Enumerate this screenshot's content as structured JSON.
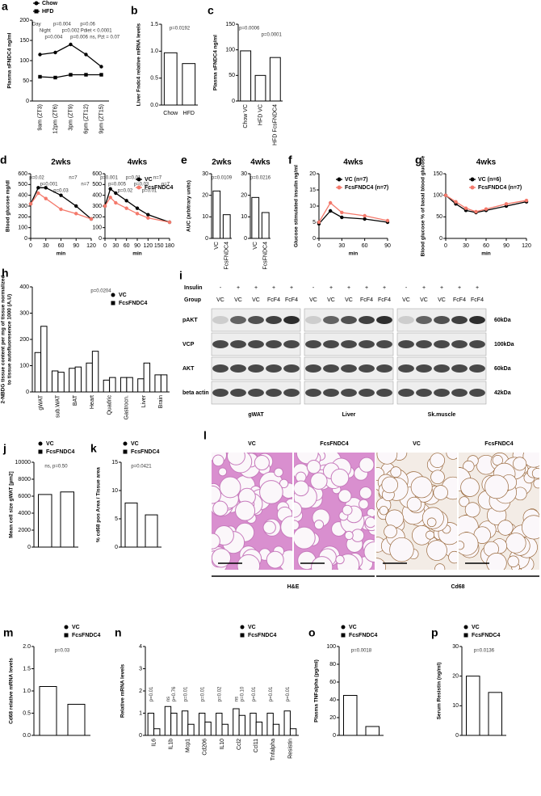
{
  "chart_data": [
    {
      "type": "line",
      "label": "a",
      "ylabel": "Plasma sFNDC4 ng/ml",
      "categories": [
        "9am (ZT3)",
        "12pm (ZT6)",
        "3pm (ZT9)",
        "6pm (ZT12)",
        "9pm (ZT15)"
      ],
      "series": [
        {
          "name": "Chow",
          "color": "#000000",
          "marker": "circle",
          "values": [
            115,
            120,
            140,
            115,
            85
          ]
        },
        {
          "name": "HFD",
          "color": "#000000",
          "marker": "square",
          "values": [
            60,
            58,
            65,
            65,
            65
          ]
        }
      ],
      "ylim": [
        0,
        200
      ],
      "yticks": [
        0,
        50,
        100,
        150,
        200
      ],
      "annotations": [
        "Day",
        "Night",
        "p=0.004",
        "p=0.004",
        "p=0.002",
        "p=0.006",
        "p=0.06",
        "Pdiet < 0.0001",
        "ns, Pzt = 0.07"
      ]
    },
    {
      "type": "bar",
      "label": "b",
      "ylabel": "Liver Fndc4 relative mRNA levels",
      "categories": [
        "Chow",
        "HFD"
      ],
      "series": [
        {
          "color": "#000000",
          "values": [
            0.97,
            0.77
          ]
        }
      ],
      "ylim": [
        0,
        1.5
      ],
      "yticks": [
        {
          "value": 0,
          "label": "0.0"
        },
        {
          "value": 0.5,
          "label": "0.5"
        },
        {
          "value": 1,
          "label": "1.0"
        },
        {
          "value": 1.5,
          "label": "1.5"
        }
      ],
      "annotations": [
        "p=0.0192"
      ]
    },
    {
      "type": "bar",
      "label": "c",
      "ylabel": "Plasma sFNDC4 ng/ml",
      "categories": [
        "Chow VC",
        "HFD VC",
        "HFD FcsFNDC4"
      ],
      "series": [
        {
          "color": "#000000",
          "values": [
            98,
            50,
            85
          ]
        }
      ],
      "ylim": [
        0,
        150
      ],
      "yticks": [
        0,
        50,
        100,
        150
      ],
      "annotations": [
        "p=0.0006",
        "p=0.0001"
      ]
    },
    {
      "type": "line",
      "label": "d",
      "title": "2wks",
      "ylabel": "Blood glucose mg/dl",
      "xlabel": "min",
      "x": [
        0,
        15,
        30,
        60,
        90,
        120
      ],
      "series": [
        {
          "color": "#000000",
          "marker": "circle",
          "values": [
            320,
            470,
            470,
            400,
            300,
            180
          ]
        },
        {
          "color": "#f4796b",
          "marker": "circle",
          "values": [
            320,
            420,
            370,
            270,
            230,
            180
          ]
        }
      ],
      "xlim": [
        0,
        120
      ],
      "xticks": [
        0,
        30,
        60,
        90,
        120
      ],
      "ylim": [
        0,
        600
      ],
      "yticks": [
        0,
        100,
        200,
        300,
        400,
        500,
        600
      ],
      "annotations": [
        "p=0.02",
        "p=0.001",
        "p=0.03",
        "n=7",
        "n=7"
      ]
    },
    {
      "type": "line",
      "title": "4wks",
      "xlabel": "min",
      "x": [
        0,
        15,
        30,
        60,
        90,
        120,
        180
      ],
      "series": [
        {
          "name": "VC",
          "color": "#000000",
          "marker": "circle",
          "values": [
            300,
            460,
            420,
            350,
            280,
            220,
            150
          ]
        },
        {
          "name": "FcsFNDC4",
          "color": "#f4796b",
          "marker": "circle",
          "values": [
            300,
            380,
            330,
            280,
            230,
            190,
            150
          ]
        }
      ],
      "xlim": [
        0,
        180
      ],
      "xticks": [
        0,
        30,
        60,
        90,
        120,
        150,
        180
      ],
      "ylim": [
        0,
        600
      ],
      "yticks": [
        0,
        100,
        200,
        300,
        400,
        500,
        600
      ],
      "annotations": [
        "p=0.001",
        "p=0.005",
        "p=0.02",
        "p=0.01",
        "p=0.03",
        "p=0.01",
        "n=7",
        "n=7"
      ]
    },
    {
      "type": "bar",
      "label": "e",
      "title": "2wks",
      "ylabel": "AUC (arbitrary units)",
      "categories": [
        "VC",
        "FcsFNDC4"
      ],
      "series": [
        {
          "color": "#000000",
          "values": [
            22,
            11
          ]
        }
      ],
      "ylim": [
        0,
        30
      ],
      "yticks": [
        0,
        10,
        20,
        30
      ],
      "annotations": [
        "p=0.0109"
      ]
    },
    {
      "type": "bar",
      "title": "4wks",
      "categories": [
        "VC",
        "FcsFNDC4"
      ],
      "series": [
        {
          "color": "#000000",
          "values": [
            19,
            12
          ]
        }
      ],
      "ylim": [
        0,
        30
      ],
      "yticks": [
        0,
        10,
        20,
        30
      ],
      "annotations": [
        "p=0.0216"
      ]
    },
    {
      "type": "line",
      "label": "f",
      "title": "4wks",
      "ylabel": "Glucose stimulated insulin ng/ml",
      "xlabel": "min",
      "x": [
        0,
        15,
        30,
        60,
        90
      ],
      "series": [
        {
          "name": "VC (n=7)",
          "color": "#000000",
          "marker": "circle",
          "values": [
            4.5,
            8.5,
            6.5,
            6,
            5
          ]
        },
        {
          "name": "FcsFNDC4 (n=7)",
          "color": "#f4796b",
          "marker": "circle",
          "values": [
            5,
            11,
            8,
            7,
            5.5
          ]
        }
      ],
      "xlim": [
        0,
        90
      ],
      "xticks": [
        0,
        30,
        60,
        90
      ],
      "ylim": [
        0,
        20
      ],
      "yticks": [
        0,
        5,
        10,
        15,
        20
      ]
    },
    {
      "type": "line",
      "label": "g",
      "title": "4wks",
      "ylabel": "Blood glucose % of basal blood glucose",
      "xlabel": "min",
      "x": [
        0,
        15,
        30,
        45,
        60,
        90,
        120
      ],
      "series": [
        {
          "name": "VC (n=6)",
          "color": "#000000",
          "marker": "circle",
          "values": [
            100,
            80,
            65,
            60,
            65,
            75,
            85
          ]
        },
        {
          "name": "FcsFNDC4 (n=7)",
          "color": "#f4796b",
          "marker": "circle",
          "values": [
            100,
            85,
            70,
            62,
            68,
            80,
            88
          ]
        }
      ],
      "xlim": [
        0,
        120
      ],
      "xticks": [
        0,
        30,
        60,
        90,
        120
      ],
      "ylim": [
        0,
        150
      ],
      "yticks": [
        0,
        50,
        100,
        150
      ]
    },
    {
      "type": "bar",
      "label": "h",
      "ylabel": [
        "2-NBDG tissue content per mg of tissue normalized",
        "to tissue autofluoresence 1000 (A.U)"
      ],
      "categories": [
        "gWAT",
        "sub.WAT",
        "BAT",
        "Heart",
        "Quadric",
        "Gastrocn.",
        "Liver",
        "Brain"
      ],
      "series": [
        {
          "name": "VC",
          "color": "#000000",
          "marker": "circle",
          "values": [
            150,
            80,
            90,
            110,
            45,
            55,
            50,
            65
          ]
        },
        {
          "name": "FcsFNDC4",
          "color": "#000000",
          "marker": "square",
          "values": [
            250,
            75,
            95,
            155,
            55,
            55,
            110,
            65
          ]
        }
      ],
      "ylim": [
        0,
        400
      ],
      "yticks": [
        0,
        100,
        200,
        300,
        400
      ],
      "annotations": [
        "p=0.0204"
      ]
    },
    {
      "type": "bar",
      "label": "j",
      "ylabel": "Mean cell size gWAT [µm2]",
      "series": [
        {
          "name": "VC",
          "color": "#000000",
          "marker": "circle",
          "values": [
            6200
          ]
        },
        {
          "name": "FcsFNDC4",
          "color": "#000000",
          "marker": "square",
          "values": [
            6500
          ]
        }
      ],
      "ylim": [
        0,
        10000
      ],
      "yticks": [
        0,
        2000,
        4000,
        6000,
        8000,
        10000
      ],
      "annotations": [
        "ns, p=0.50"
      ]
    },
    {
      "type": "bar",
      "label": "k",
      "ylabel": "% cd68 pos Area / Tissue area",
      "series": [
        {
          "name": "VC",
          "color": "#000000",
          "marker": "circle",
          "values": [
            7.8
          ]
        },
        {
          "name": "FcsFNDC4",
          "color": "#000000",
          "marker": "square",
          "values": [
            5.7
          ]
        }
      ],
      "ylim": [
        0,
        15
      ],
      "yticks": [
        0,
        5,
        10,
        15
      ],
      "annotations": [
        "p=0.0421"
      ]
    },
    {
      "type": "bar",
      "label": "m",
      "ylabel": "Cd68 relative mRNA levels",
      "series": [
        {
          "name": "VC",
          "color": "#000000",
          "marker": "circle",
          "values": [
            1.1
          ]
        },
        {
          "name": "FcsFNDC4",
          "color": "#000000",
          "marker": "square",
          "values": [
            0.7
          ]
        }
      ],
      "ylim": [
        0,
        2
      ],
      "yticks": [
        {
          "value": 0,
          "label": "0.0"
        },
        {
          "value": 0.5,
          "label": "0.5"
        },
        {
          "value": 1,
          "label": "1.0"
        },
        {
          "value": 1.5,
          "label": "1.5"
        },
        {
          "value": 2,
          "label": "2.0"
        }
      ],
      "annotations": [
        "p=0.03"
      ]
    },
    {
      "type": "bar",
      "label": "n",
      "ylabel": "Relative mRNA levels",
      "categories": [
        "IL6",
        "IL1b",
        "Mcp1",
        "Cd206",
        "IL10",
        "Ccl2",
        "Ccl11",
        "Tnfalpha",
        "Resistin"
      ],
      "category_notes": [
        [
          "p=0.01"
        ],
        [
          "ns",
          "p=0.76"
        ],
        [
          "p=0.01"
        ],
        [
          "p=0.01"
        ],
        [
          "p=0.02"
        ],
        [
          "ns",
          "p=0.10"
        ],
        [
          "p=0.01"
        ],
        [
          "p=0.01"
        ],
        [
          "p=0.01"
        ]
      ],
      "series": [
        {
          "name": "VC",
          "color": "#000000",
          "marker": "circle",
          "values": [
            1.0,
            1.3,
            1.1,
            1.0,
            1.0,
            1.2,
            1.0,
            1.0,
            1.1
          ]
        },
        {
          "name": "FcsFNDC4",
          "color": "#000000",
          "marker": "square",
          "values": [
            0.3,
            1.0,
            0.5,
            0.6,
            0.5,
            0.9,
            0.6,
            0.5,
            0.3
          ]
        }
      ],
      "ylim": [
        0,
        4
      ],
      "yticks": [
        0,
        1,
        2,
        3,
        4
      ]
    },
    {
      "type": "bar",
      "label": "o",
      "ylabel": "Plasma TNFalpha (pg/ml)",
      "series": [
        {
          "name": "VC",
          "color": "#000000",
          "marker": "circle",
          "values": [
            45
          ]
        },
        {
          "name": "FcsFNDC4",
          "color": "#000000",
          "marker": "square",
          "values": [
            10
          ]
        }
      ],
      "ylim": [
        0,
        100
      ],
      "yticks": [
        0,
        20,
        40,
        60,
        80,
        100
      ],
      "annotations": [
        "p=0.0018"
      ]
    },
    {
      "type": "bar",
      "label": "p",
      "ylabel": "Serum Resistin (ng/ml)",
      "series": [
        {
          "name": "VC",
          "color": "#000000",
          "marker": "circle",
          "values": [
            20
          ]
        },
        {
          "name": "FcsFNDC4",
          "color": "#000000",
          "marker": "square",
          "values": [
            14.5
          ]
        }
      ],
      "ylim": [
        0,
        30
      ],
      "yticks": [
        0,
        10,
        20,
        30
      ],
      "annotations": [
        "p=0.0136"
      ]
    }
  ],
  "blot": {
    "label": "i",
    "insulin_label": "Insulin",
    "group_label": "Group",
    "bands": [
      {
        "name": "pAKT",
        "size": "60kDa"
      },
      {
        "name": "VCP",
        "size": "100kDa"
      },
      {
        "name": "AKT",
        "size": "60kDa"
      },
      {
        "name": "beta actin",
        "size": "42kDa"
      }
    ],
    "tissues": [
      {
        "name": "gWAT",
        "insulin": [
          "-",
          "+",
          "+",
          "+",
          "+"
        ],
        "groups": [
          "VC",
          "VC",
          "VC",
          "FcF4",
          "FcF4"
        ]
      },
      {
        "name": "Liver",
        "insulin": [
          "-",
          "+",
          "+",
          "+",
          "+"
        ],
        "groups": [
          "VC",
          "VC",
          "VC",
          "FcF4",
          "FcF4"
        ]
      },
      {
        "name": "Sk.muscle",
        "insulin": [
          "-",
          "+",
          "+",
          "+",
          "+"
        ],
        "groups": [
          "VC",
          "VC",
          "VC",
          "FcF4",
          "FcF4"
        ]
      }
    ]
  },
  "histology": {
    "label": "l",
    "panels": [
      "VC",
      "FcsFNDC4",
      "VC",
      "FcsFNDC4"
    ],
    "stains": [
      "H&E",
      "Cd68"
    ]
  }
}
